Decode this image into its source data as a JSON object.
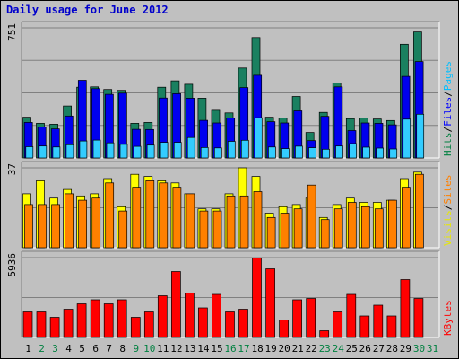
{
  "chart_data": {
    "type": "bar",
    "title": "Daily usage for June 2012",
    "categories": [
      "1",
      "2",
      "3",
      "4",
      "5",
      "6",
      "7",
      "8",
      "9",
      "10",
      "11",
      "12",
      "13",
      "14",
      "15",
      "16",
      "17",
      "18",
      "19",
      "20",
      "21",
      "22",
      "23",
      "24",
      "25",
      "26",
      "27",
      "28",
      "29",
      "30",
      "31"
    ],
    "weekend_days": [
      "2",
      "3",
      "9",
      "10",
      "16",
      "17",
      "23",
      "24",
      "30",
      "31"
    ],
    "panels": [
      {
        "name": "hits-files-pages",
        "ymax_label": "751",
        "ymax": 751,
        "right_labels": [
          {
            "text": "Hits",
            "color": "#008040"
          },
          {
            "text": "/",
            "color": "#000000"
          },
          {
            "text": "Files",
            "color": "#0000ff"
          },
          {
            "text": "/",
            "color": "#000000"
          },
          {
            "text": "Pages",
            "color": "#00bfff"
          }
        ],
        "series": [
          {
            "name": "Hits",
            "color": "#1a8060",
            "values": [
              235,
              200,
              195,
              300,
              408,
              410,
              395,
              390,
              200,
              205,
              408,
              445,
              425,
              345,
              275,
              260,
              519,
              695,
              235,
              230,
              355,
              147,
              263,
              432,
              227,
              230,
              225,
              216,
              656,
              727,
              0
            ]
          },
          {
            "name": "Files",
            "color": "#0000ee",
            "values": [
              205,
              178,
              168,
              242,
              448,
              400,
              367,
              374,
              165,
              164,
              346,
              371,
              345,
              217,
              202,
              231,
              406,
              477,
              209,
              202,
              272,
              100,
              240,
              410,
              158,
              202,
              200,
              191,
              471,
              556,
              0
            ]
          },
          {
            "name": "Pages",
            "color": "#33ccff",
            "values": [
              65,
              69,
              63,
              76,
              98,
              103,
              87,
              78,
              67,
              74,
              90,
              90,
              118,
              60,
              58,
              96,
              102,
              232,
              63,
              54,
              68,
              59,
              50,
              69,
              83,
              62,
              57,
              52,
              224,
              252,
              0
            ]
          }
        ]
      },
      {
        "name": "visits-sites",
        "ymax_label": "37",
        "ymax": 37,
        "right_labels": [
          {
            "text": "Visits",
            "color": "#e8e800"
          },
          {
            "text": "/",
            "color": "#000000"
          },
          {
            "text": "Sites",
            "color": "#ff8000"
          }
        ],
        "series": [
          {
            "name": "Visits",
            "color": "#ffff00",
            "values": [
              25,
              31,
              23,
              27,
              24,
              25,
              32,
              19,
              34,
              33,
              31,
              30,
              25,
              18,
              18,
              25,
              37,
              33,
              16,
              19,
              20,
              23,
              14,
              20,
              23,
              21,
              21,
              22,
              32,
              35,
              0
            ]
          },
          {
            "name": "Sites",
            "color": "#ff8000",
            "values": [
              20,
              20,
              20,
              25,
              22,
              23,
              30,
              17,
              28,
              31,
              30,
              28,
              25,
              17,
              17,
              24,
              24,
              26,
              14,
              16,
              18,
              29,
              13,
              18,
              21,
              19,
              18,
              22,
              28,
              34,
              0
            ]
          }
        ]
      },
      {
        "name": "kbytes",
        "ymax_label": "5936",
        "ymax": 5936,
        "right_labels": [
          {
            "text": "KBytes",
            "color": "#ff0000"
          }
        ],
        "series": [
          {
            "name": "KBytes",
            "color": "#ff0000",
            "values": [
              1900,
              1900,
              1500,
              2100,
              2500,
              2800,
              2500,
              2800,
              1500,
              1900,
              3100,
              4900,
              3300,
              2200,
              3200,
              1900,
              2100,
              5900,
              5100,
              1300,
              2800,
              2900,
              500,
              1900,
              3200,
              1600,
              2400,
              1600,
              4300,
              2900,
              0
            ]
          }
        ]
      }
    ]
  }
}
